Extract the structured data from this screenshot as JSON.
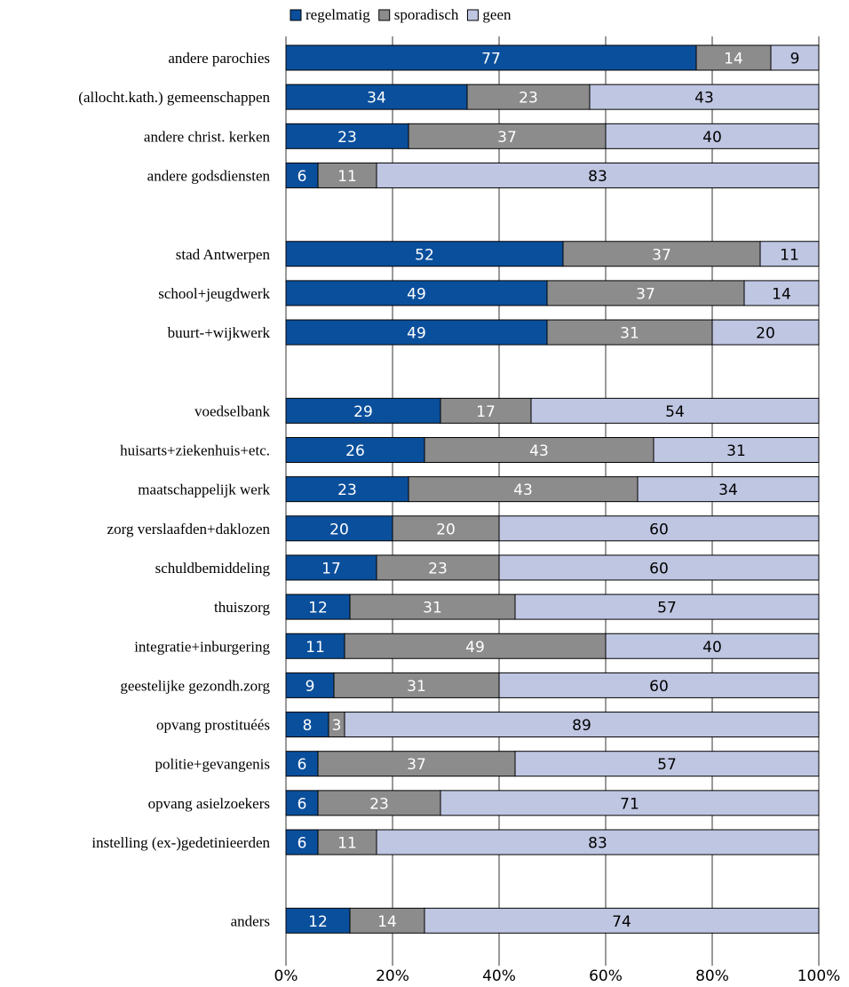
{
  "chart_data": {
    "type": "bar",
    "orientation": "horizontal",
    "stacked": true,
    "percent_stacked": true,
    "title": "",
    "xlabel": "",
    "ylabel": "",
    "xlim": [
      0,
      100
    ],
    "x_ticks": [
      "0%",
      "20%",
      "40%",
      "60%",
      "80%",
      "100%"
    ],
    "grid": "vertical",
    "legend_position": "top",
    "categories": [
      "andere parochies",
      "(allocht.kath.) gemeenschappen",
      "andere christ. kerken",
      "andere godsdiensten",
      "",
      "stad Antwerpen",
      "school+jeugdwerk",
      "buurt-+wijkwerk",
      "",
      "voedselbank",
      "huisarts+ziekenhuis+etc.",
      "maatschappelijk werk",
      "zorg verslaafden+daklozen",
      "schuldbemiddeling",
      "thuiszorg",
      "integratie+inburgering",
      "geestelijke gezondh.zorg",
      "opvang prostituéés",
      "politie+gevangenis",
      "opvang asielzoekers",
      "instelling (ex-)gedetinieerden",
      "",
      "anders"
    ],
    "series": [
      {
        "name": "regelmatig",
        "color": "#0a4f9c",
        "label_color": "#ffffff",
        "values": [
          77,
          34,
          23,
          6,
          null,
          52,
          49,
          49,
          null,
          29,
          26,
          23,
          20,
          17,
          12,
          11,
          9,
          8,
          6,
          6,
          6,
          null,
          12
        ]
      },
      {
        "name": "sporadisch",
        "color": "#8c8c8c",
        "label_color": "#ffffff",
        "values": [
          14,
          23,
          37,
          11,
          null,
          37,
          37,
          31,
          null,
          17,
          43,
          43,
          20,
          23,
          31,
          49,
          31,
          3,
          37,
          23,
          11,
          null,
          14
        ]
      },
      {
        "name": "geen",
        "color": "#bfc6e2",
        "label_color": "#000000",
        "values": [
          9,
          43,
          40,
          83,
          null,
          11,
          14,
          20,
          null,
          54,
          31,
          34,
          60,
          60,
          57,
          40,
          60,
          89,
          57,
          71,
          83,
          null,
          74
        ]
      }
    ]
  }
}
